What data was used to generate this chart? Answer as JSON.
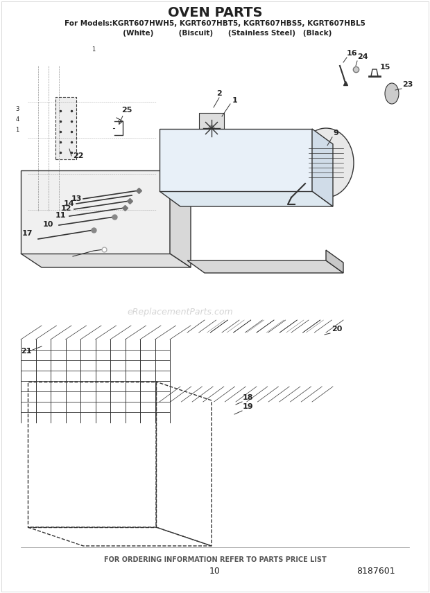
{
  "title": "OVEN PARTS",
  "subtitle1": "For Models:KGRT607HWH5, KGRT607HBT5, KGRT607HBS5, KGRT607HBL5",
  "subtitle2": "          (White)          (Biscuit)      (Stainless Steel)   (Black)",
  "footer1": "FOR ORDERING INFORMATION REFER TO PARTS PRICE LIST",
  "footer2": "10",
  "footer3": "8187601",
  "bg_color": "#ffffff",
  "line_color": "#333333",
  "text_color": "#222222",
  "watermark": "eReplacementParts.com"
}
